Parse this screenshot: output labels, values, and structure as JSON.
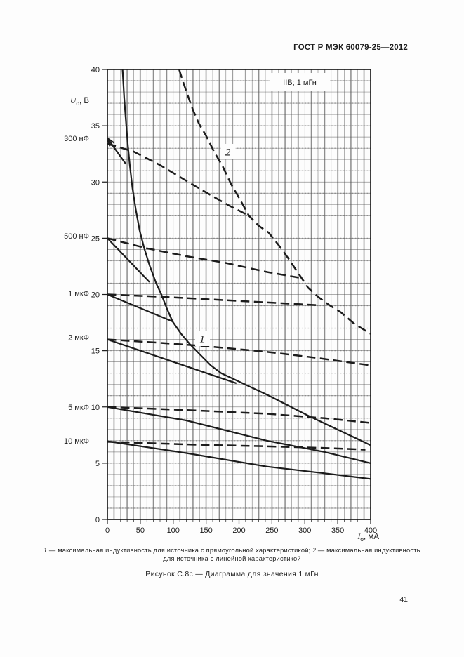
{
  "page": {
    "header": "ГОСТ Р МЭК 60079-25—2012",
    "page_number": "41",
    "figure_caption": "Рисунок С.8с — Диаграмма для значения 1 мГн",
    "legend": {
      "item1_num": "1",
      "item1_text": " — максимальная индуктивность для источника с прямоугольной характеристикой; ",
      "item2_num": "2",
      "item2_text": " — максимальная индуктивность",
      "line2": "для источника с линейной характеристикой"
    }
  },
  "colors": {
    "ink": "#1c1c1c",
    "grid_minor": "#4a4a4a",
    "grid_emphasis": "#b3b3b3",
    "paper": "#fdfdfd"
  },
  "chart_data": {
    "type": "line",
    "title_box": "IIB; 1 мГн",
    "x_axis": {
      "symbol": "I",
      "sub": "о",
      "tail": ", мА",
      "min": 0,
      "max": 400,
      "label_step": 50,
      "minor_step": 10,
      "tick_labels": [
        "0",
        "50",
        "100",
        "150",
        "200",
        "250",
        "300",
        "350",
        "400"
      ]
    },
    "y_axis": {
      "symbol": "U",
      "sub": "о",
      "tail": ", В",
      "min": 0,
      "max": 40,
      "label_step": 5,
      "minor_step": 1,
      "tick_labels": [
        "0",
        "5",
        "10",
        "15",
        "20",
        "25",
        "30",
        "35",
        "40"
      ]
    },
    "capacitance_labels": [
      {
        "text": "300 нФ",
        "v": 33.9
      },
      {
        "text": "500 нФ",
        "v": 25.2
      },
      {
        "text": "1 мкФ",
        "v": 20.1
      },
      {
        "text": "2 мкФ",
        "v": 16.2
      },
      {
        "text": "5 мкФ",
        "v": 10.0
      },
      {
        "text": "10 мкФ",
        "v": 7.0
      }
    ],
    "curve_labels": [
      {
        "text": "1",
        "ma": 144,
        "v": 16.1
      },
      {
        "text": "2",
        "ma": 183,
        "v": 32.7
      }
    ],
    "series": [
      {
        "name": "curve-1-max-inductance-rectangular-source",
        "style": "solid",
        "points": [
          [
            23,
            40
          ],
          [
            25.5,
            37.5
          ],
          [
            28,
            35.5
          ],
          [
            31,
            33.3
          ],
          [
            34,
            31.5
          ],
          [
            38,
            29.5
          ],
          [
            43,
            27.6
          ],
          [
            49,
            25.7
          ],
          [
            56,
            24.1
          ],
          [
            64,
            22.6
          ],
          [
            74,
            21.0
          ],
          [
            82,
            20.0
          ],
          [
            90,
            18.8
          ],
          [
            99,
            17.6
          ],
          [
            112,
            16.5
          ],
          [
            125,
            15.6
          ],
          [
            140,
            14.7
          ],
          [
            157,
            13.7
          ],
          [
            173,
            13.0
          ],
          [
            242,
            11.1
          ],
          [
            306,
            9.2
          ],
          [
            400,
            6.6
          ]
        ]
      },
      {
        "name": "curve-2-max-inductance-linear-source",
        "style": "dashed",
        "points": [
          [
            109,
            40
          ],
          [
            115,
            38.9
          ],
          [
            122,
            37.7
          ],
          [
            130,
            36.4
          ],
          [
            139,
            35.2
          ],
          [
            150,
            34.1
          ],
          [
            162,
            32.7
          ],
          [
            175,
            31.4
          ],
          [
            188,
            29.8
          ],
          [
            200,
            28.6
          ],
          [
            215,
            27.0
          ],
          [
            230,
            26.1
          ],
          [
            245,
            25.5
          ],
          [
            260,
            24.4
          ],
          [
            275,
            23.2
          ],
          [
            290,
            21.9
          ],
          [
            305,
            20.6
          ],
          [
            320,
            19.8
          ],
          [
            336,
            19.1
          ],
          [
            355,
            18.4
          ],
          [
            375,
            17.4
          ],
          [
            400,
            16.5
          ]
        ]
      },
      {
        "name": "300nF-rectangular",
        "style": "solid",
        "arrow_start": true,
        "points": [
          [
            0,
            33.9
          ],
          [
            28,
            31.6
          ]
        ]
      },
      {
        "name": "300nF-linear",
        "style": "dashed",
        "points": [
          [
            0,
            33.4
          ],
          [
            40,
            32.7
          ],
          [
            80,
            31.5
          ],
          [
            120,
            30.1
          ],
          [
            155,
            28.9
          ],
          [
            185,
            27.9
          ],
          [
            215,
            27.0
          ]
        ]
      },
      {
        "name": "500nF-rectangular",
        "style": "solid",
        "points": [
          [
            0,
            25
          ],
          [
            64,
            21.1
          ]
        ]
      },
      {
        "name": "500nF-linear",
        "style": "dashed",
        "points": [
          [
            0,
            25
          ],
          [
            60,
            24.1
          ],
          [
            120,
            23.4
          ],
          [
            180,
            22.8
          ],
          [
            242,
            22.0
          ],
          [
            291,
            21.5
          ]
        ]
      },
      {
        "name": "1uF-rectangular",
        "style": "solid",
        "points": [
          [
            0,
            20
          ],
          [
            99,
            17.6
          ]
        ]
      },
      {
        "name": "1uF-linear",
        "style": "dashed",
        "points": [
          [
            0,
            20
          ],
          [
            80,
            19.8
          ],
          [
            160,
            19.55
          ],
          [
            240,
            19.3
          ],
          [
            318,
            19.05
          ]
        ]
      },
      {
        "name": "2uF-rectangular",
        "style": "solid",
        "points": [
          [
            0,
            16
          ],
          [
            196,
            12.1
          ]
        ]
      },
      {
        "name": "2uF-linear",
        "style": "dashed",
        "points": [
          [
            0,
            16
          ],
          [
            80,
            15.7
          ],
          [
            150,
            15.4
          ],
          [
            242,
            14.9
          ],
          [
            313,
            14.4
          ],
          [
            400,
            13.7
          ]
        ]
      },
      {
        "name": "5uF-rectangular",
        "style": "solid",
        "points": [
          [
            0,
            10
          ],
          [
            120,
            8.8
          ],
          [
            242,
            7.0
          ],
          [
            330,
            6.0
          ],
          [
            400,
            5.0
          ]
        ]
      },
      {
        "name": "5uF-linear",
        "style": "dashed",
        "points": [
          [
            0,
            10
          ],
          [
            130,
            9.7
          ],
          [
            242,
            9.4
          ],
          [
            330,
            9.0
          ],
          [
            397,
            8.6
          ]
        ]
      },
      {
        "name": "10uF-rectangular",
        "style": "solid",
        "points": [
          [
            0,
            6.95
          ],
          [
            120,
            5.9
          ],
          [
            242,
            4.7
          ],
          [
            330,
            4.1
          ],
          [
            400,
            3.6
          ]
        ]
      },
      {
        "name": "10uF-linear",
        "style": "dashed",
        "points": [
          [
            0,
            6.9
          ],
          [
            130,
            6.65
          ],
          [
            242,
            6.5
          ],
          [
            330,
            6.35
          ],
          [
            392,
            6.2
          ]
        ]
      }
    ]
  }
}
